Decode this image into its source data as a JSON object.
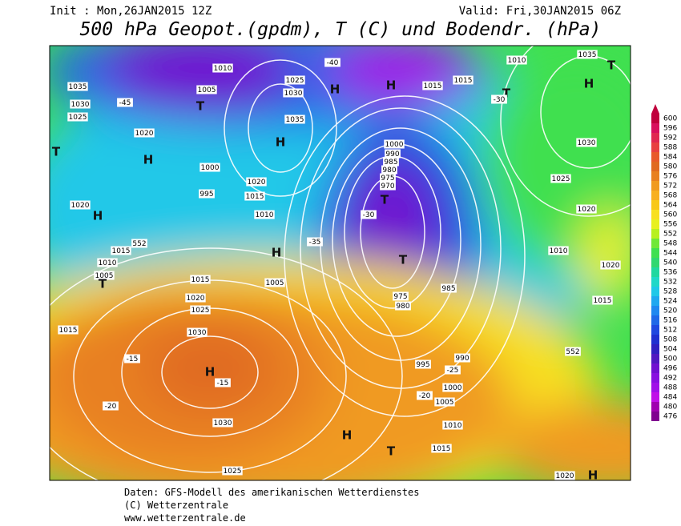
{
  "header": {
    "init": "Init : Mon,26JAN2015 12Z",
    "valid": "Valid: Fri,30JAN2015 06Z",
    "title": "500 hPa Geopot.(gpdm), T (C) und Bodendr. (hPa)"
  },
  "colorbar": {
    "ticks": [
      600,
      596,
      592,
      588,
      584,
      580,
      576,
      572,
      568,
      564,
      560,
      556,
      552,
      548,
      544,
      540,
      536,
      532,
      528,
      524,
      520,
      516,
      512,
      508,
      504,
      500,
      496,
      492,
      488,
      484,
      480,
      476
    ],
    "colors": [
      "#c0003c",
      "#d8105c",
      "#e02850",
      "#e84040",
      "#e85a2a",
      "#e06a20",
      "#e88020",
      "#f09a20",
      "#f8b020",
      "#f8c818",
      "#f8e020",
      "#e8f020",
      "#b8f020",
      "#70e838",
      "#40e050",
      "#30d870",
      "#20d8a0",
      "#20d8c8",
      "#20c8e8",
      "#20a8f0",
      "#2088f0",
      "#2068e8",
      "#2048e0",
      "#2030d0",
      "#3020c0",
      "#5018c0",
      "#7010d0",
      "#8810e0",
      "#a010e8",
      "#c010e8",
      "#a000b0",
      "#800090"
    ]
  },
  "map": {
    "labels": [
      "1010",
      "1005",
      "1025",
      "1030",
      "1035",
      "H",
      "T",
      "1035",
      "1030",
      "1025",
      "1020",
      "1000",
      "995",
      "1015",
      "1010",
      "1020",
      "1000",
      "990",
      "985",
      "980",
      "975",
      "970",
      "T",
      "T",
      "975",
      "980",
      "985",
      "990",
      "995",
      "1000",
      "1005",
      "1010",
      "1015",
      "H",
      "1030",
      "1025",
      "1020",
      "1015",
      "1030",
      "1025",
      "H",
      "T",
      "H",
      "1005",
      "-35",
      "-30",
      "-25",
      "-20",
      "-15",
      "-20",
      "-15",
      "552",
      "552",
      "H",
      "T",
      "1035",
      "1010",
      "1030",
      "1025",
      "1020",
      "1010",
      "1015",
      "1020",
      "T",
      "H",
      "1020",
      "H",
      "1010",
      "1005",
      "T",
      "1015",
      "1015",
      "-40",
      "-45",
      "H",
      "H",
      "1015",
      "1015",
      "T",
      "-30",
      "1020",
      "H"
    ]
  },
  "footer": {
    "line1": "Daten: GFS-Modell des amerikanischen Wetterdienstes",
    "line2": "(C) Wetterzentrale",
    "line3": "www.wetterzentrale.de"
  }
}
